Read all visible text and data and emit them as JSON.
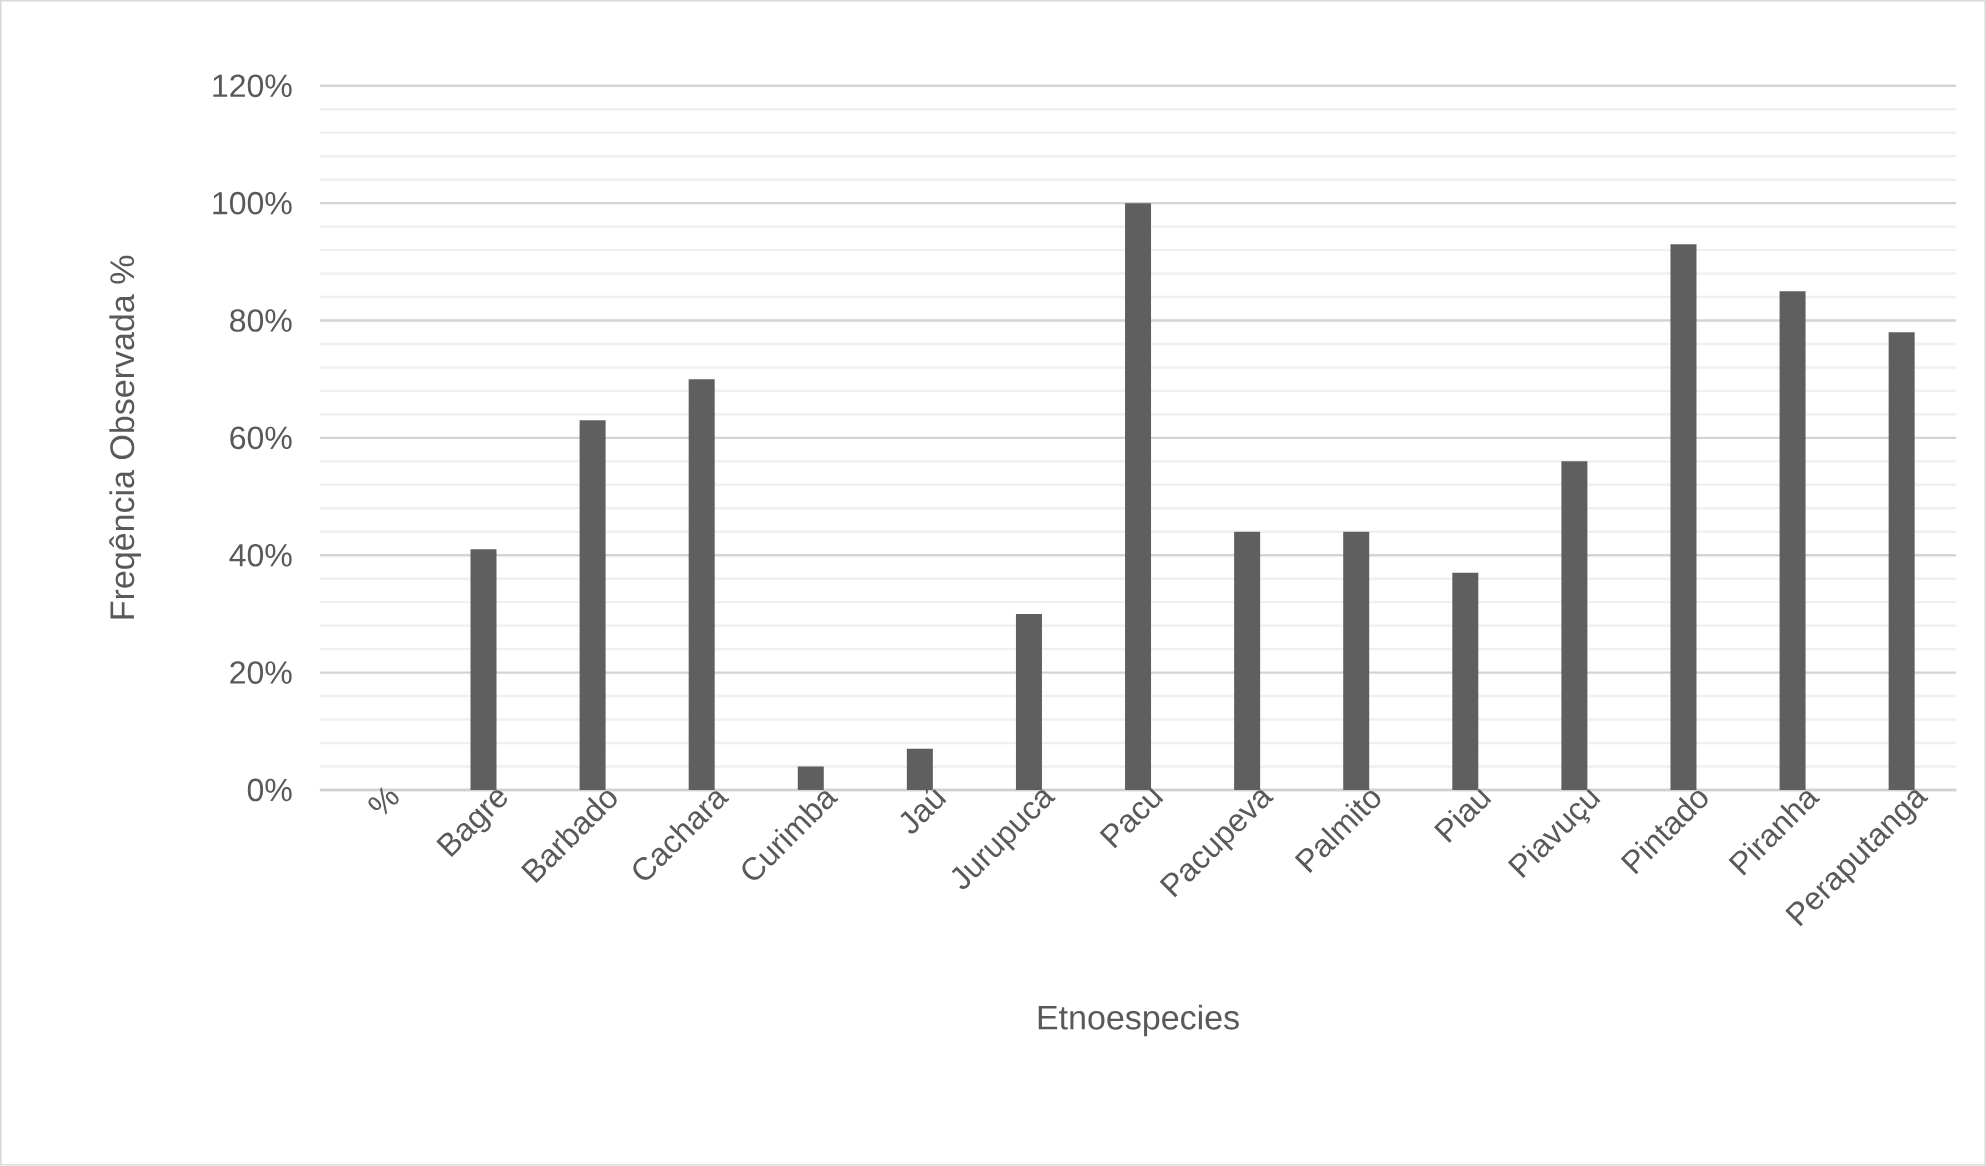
{
  "chart_data": {
    "type": "bar",
    "xlabel": "Etnoespecies",
    "ylabel": "Freqência Observada %",
    "categories": [
      "%",
      "Bagre",
      "Barbado",
      "Cachara",
      "Curimba",
      "Jaú",
      "Jurupuca",
      "Pacu",
      "Pacupeva",
      "Palmito",
      "Piau",
      "Piavuçu",
      "Pintado",
      "Piranha",
      "Peraputanga"
    ],
    "values": [
      null,
      41,
      63,
      70,
      4,
      7,
      30,
      100,
      44,
      44,
      37,
      56,
      93,
      85,
      78
    ],
    "color": "#5f5f5f",
    "ylim": [
      0,
      120
    ],
    "yticks": [
      {
        "value": 0,
        "label": "0%"
      },
      {
        "value": 20,
        "label": "20%"
      },
      {
        "value": 40,
        "label": "40%"
      },
      {
        "value": 60,
        "label": "60%"
      },
      {
        "value": 80,
        "label": "80%"
      },
      {
        "value": 100,
        "label": "100%"
      },
      {
        "value": 120,
        "label": "120%"
      }
    ],
    "grid": "y"
  }
}
